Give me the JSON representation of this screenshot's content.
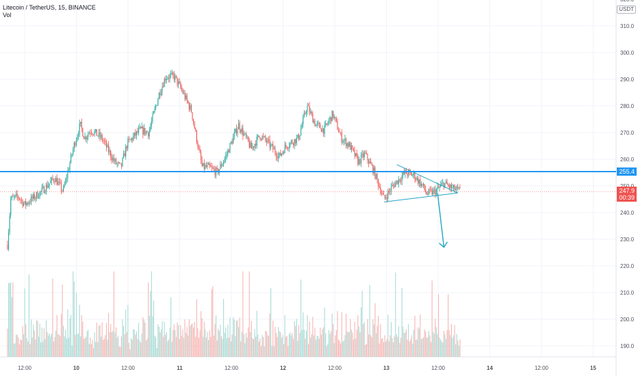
{
  "header": {
    "title": "Litecoin / TetherUS, 15, BINANCE",
    "volume_label": "Vol"
  },
  "price_axis": {
    "currency": "USDT",
    "ticks": [
      "320.0",
      "310.0",
      "300.0",
      "290.0",
      "280.0",
      "270.0",
      "260.0",
      "250.0",
      "240.0",
      "230.0",
      "220.0",
      "210.0",
      "200.0",
      "190.0"
    ],
    "current_price": "247.9",
    "countdown": "00:39",
    "level_label": "255.4"
  },
  "time_axis": {
    "labels": [
      "12:00",
      "10",
      "12:00",
      "11",
      "12:00",
      "12",
      "12:00",
      "13",
      "12:00",
      "14",
      "12:00",
      "15"
    ]
  },
  "colors": {
    "up": "#26a69a",
    "down": "#ef5350",
    "level_line": "#2196f3",
    "drawing": "#22a6c3",
    "grid": "#f0f3fa"
  },
  "chart_data": {
    "type": "candlestick",
    "symbol": "LTCUSDT",
    "interval": "15",
    "exchange": "BINANCE",
    "ylim": [
      183,
      322
    ],
    "horizontal_level": 255.4,
    "current_price": 247.9,
    "price_path": [
      {
        "t": "9 08:00",
        "p": 228
      },
      {
        "t": "9 08:45",
        "p": 245
      },
      {
        "t": "9 10:30",
        "p": 246
      },
      {
        "t": "9 12:00",
        "p": 243
      },
      {
        "t": "9 16:00",
        "p": 248
      },
      {
        "t": "9 19:00",
        "p": 253
      },
      {
        "t": "9 21:00",
        "p": 248
      },
      {
        "t": "9 23:30",
        "p": 265
      },
      {
        "t": "10 01:00",
        "p": 273
      },
      {
        "t": "10 02:00",
        "p": 268
      },
      {
        "t": "10 03:30",
        "p": 271
      },
      {
        "t": "10 06:00",
        "p": 268
      },
      {
        "t": "10 09:00",
        "p": 259
      },
      {
        "t": "10 10:30",
        "p": 257
      },
      {
        "t": "10 12:00",
        "p": 266
      },
      {
        "t": "10 15:00",
        "p": 271
      },
      {
        "t": "10 17:00",
        "p": 270
      },
      {
        "t": "10 19:30",
        "p": 285
      },
      {
        "t": "10 21:00",
        "p": 291
      },
      {
        "t": "10 23:00",
        "p": 291
      },
      {
        "t": "11 01:00",
        "p": 285
      },
      {
        "t": "11 03:00",
        "p": 278
      },
      {
        "t": "11 04:30",
        "p": 265
      },
      {
        "t": "11 05:30",
        "p": 257
      },
      {
        "t": "11 07:00",
        "p": 257
      },
      {
        "t": "11 09:00",
        "p": 255
      },
      {
        "t": "11 11:00",
        "p": 261
      },
      {
        "t": "11 14:00",
        "p": 273
      },
      {
        "t": "11 17:00",
        "p": 264
      },
      {
        "t": "11 19:00",
        "p": 269
      },
      {
        "t": "11 21:00",
        "p": 266
      },
      {
        "t": "11 23:30",
        "p": 261
      },
      {
        "t": "12 01:00",
        "p": 265
      },
      {
        "t": "12 04:00",
        "p": 268
      },
      {
        "t": "12 06:00",
        "p": 280
      },
      {
        "t": "12 08:00",
        "p": 273
      },
      {
        "t": "12 10:00",
        "p": 271
      },
      {
        "t": "12 12:00",
        "p": 277
      },
      {
        "t": "12 14:00",
        "p": 268
      },
      {
        "t": "12 16:00",
        "p": 265
      },
      {
        "t": "12 18:00",
        "p": 259
      },
      {
        "t": "12 19:30",
        "p": 262
      },
      {
        "t": "12 21:30",
        "p": 256
      },
      {
        "t": "13 00:00",
        "p": 245
      },
      {
        "t": "13 02:00",
        "p": 250
      },
      {
        "t": "13 05:00",
        "p": 255
      },
      {
        "t": "13 07:00",
        "p": 254
      },
      {
        "t": "13 09:00",
        "p": 250
      },
      {
        "t": "13 10:00",
        "p": 247
      },
      {
        "t": "13 12:00",
        "p": 248
      },
      {
        "t": "13 14:00",
        "p": 251
      },
      {
        "t": "13 16:00",
        "p": 249
      },
      {
        "t": "13 18:00",
        "p": 248
      }
    ],
    "drawings": {
      "triangle": [
        [
          {
            "t": "13 00:00",
            "p": 244
          }
        ],
        [
          {
            "t": "13 03:00",
            "p": 258
          }
        ],
        [
          {
            "t": "13 15:00",
            "p": 247.5
          }
        ]
      ],
      "arrow": [
        {
          "t": "13 12:30",
          "p": 247.5
        },
        {
          "t": "13 14:00",
          "p": 227
        }
      ]
    }
  }
}
